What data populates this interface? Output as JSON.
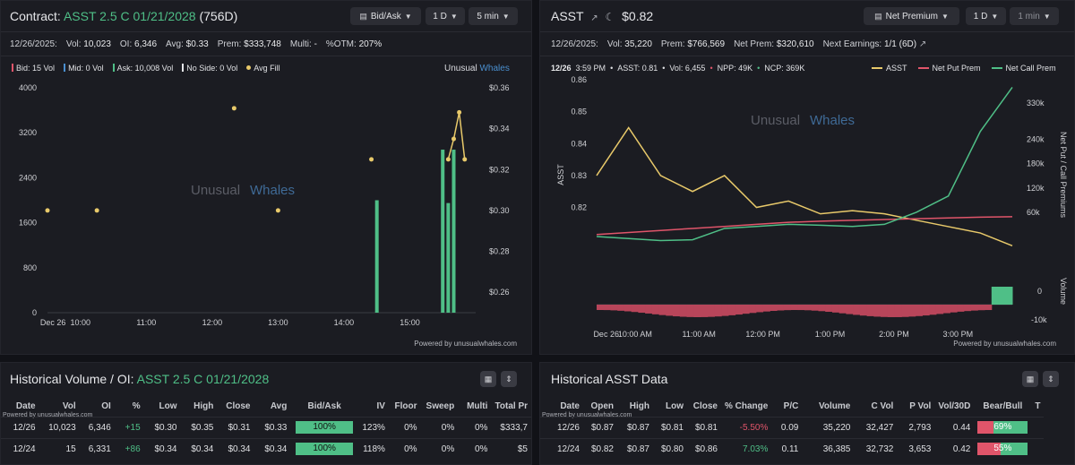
{
  "contract": {
    "label": "Contract:",
    "symbol": "ASST 2.5 C 01/21/2028",
    "dte": "(756D)",
    "controls": {
      "mode": "Bid/Ask",
      "range": "1 D",
      "interval": "5 min"
    },
    "stats": {
      "date": "12/26/2025:",
      "vol_label": "Vol:",
      "vol": "10,023",
      "oi_label": "OI:",
      "oi": "6,346",
      "avg_label": "Avg:",
      "avg": "$0.33",
      "prem_label": "Prem:",
      "prem": "$333,748",
      "multi_label": "Multi:",
      "multi": "-",
      "otm_label": "%OTM:",
      "otm": "207%"
    },
    "legend": {
      "bid_label": "Bid:",
      "bid": "15 Vol",
      "mid_label": "Mid:",
      "mid": "0 Vol",
      "ask_label": "Ask:",
      "ask": "10,008 Vol",
      "noside_label": "No Side:",
      "noside": "0 Vol",
      "avgfill": "Avg Fill"
    },
    "brand": "Unusual",
    "brand2": "Whales",
    "powered": "Powered by unusualwhales.com"
  },
  "asst": {
    "ticker": "ASST",
    "price": "$0.82",
    "controls": {
      "mode": "Net Premium",
      "range": "1 D",
      "interval": "1 min"
    },
    "stats": {
      "date": "12/26/2025:",
      "vol_label": "Vol:",
      "vol": "35,220",
      "prem_label": "Prem:",
      "prem": "$766,569",
      "netprem_label": "Net Prem:",
      "netprem": "$320,610",
      "earn_label": "Next Earnings:",
      "earn": "1/1 (6D)"
    },
    "hover": {
      "time": "12/26",
      "time2": "3:59 PM",
      "asst": "ASST: 0.81",
      "vol": "Vol: 6,455",
      "npp": "NPP: 49K",
      "ncp": "NCP: 369K"
    },
    "legend": {
      "asst": "ASST",
      "npp": "Net Put Prem",
      "ncp": "Net Call Prem"
    },
    "brand": "Unusual",
    "brand2": "Whales",
    "powered": "Powered by unusualwhales.com",
    "left_axis_title": "ASST",
    "right_axis_title": "Net Put / Call Premiums",
    "volume_axis_title": "Volume"
  },
  "histvol": {
    "title_prefix": "Historical Volume / OI:",
    "title_symbol": "ASST 2.5 C 01/21/2028",
    "powered": "Powered by unusualwhales.com",
    "columns": [
      "Date",
      "Vol",
      "OI",
      "%",
      "Low",
      "High",
      "Close",
      "Avg",
      "Bid/Ask",
      "IV",
      "Floor",
      "Sweep",
      "Multi",
      "Total Pr"
    ],
    "rows": [
      {
        "date": "12/26",
        "vol": "10,023",
        "oi": "6,346",
        "pct": "+15",
        "low": "$0.30",
        "high": "$0.35",
        "close": "$0.31",
        "avg": "$0.33",
        "bidask": "100%",
        "bidask_value": 100,
        "iv": "123%",
        "floor": "0%",
        "sweep": "0%",
        "multi": "0%",
        "total": "$333,7"
      },
      {
        "date": "12/24",
        "vol": "15",
        "oi": "6,331",
        "pct": "+86",
        "low": "$0.34",
        "high": "$0.34",
        "close": "$0.34",
        "avg": "$0.34",
        "bidask": "100%",
        "bidask_value": 100,
        "iv": "118%",
        "floor": "0%",
        "sweep": "0%",
        "multi": "0%",
        "total": "$5"
      }
    ]
  },
  "histdata": {
    "title": "Historical ASST Data",
    "powered": "Powered by unusualwhales.com",
    "columns": [
      "Date",
      "Open",
      "High",
      "Low",
      "Close",
      "% Change",
      "P/C",
      "Volume",
      "C Vol",
      "P Vol",
      "Vol/30D",
      "Bear/Bull",
      "T"
    ],
    "rows": [
      {
        "date": "12/26",
        "open": "$0.87",
        "high": "$0.87",
        "low": "$0.81",
        "close": "$0.81",
        "chg": "-5.50%",
        "pc": "0.09",
        "volume": "35,220",
        "cvol": "32,427",
        "pvol": "2,793",
        "v30": "0.44",
        "bb": "69%",
        "bull_pct": 69
      },
      {
        "date": "12/24",
        "open": "$0.82",
        "high": "$0.87",
        "low": "$0.80",
        "close": "$0.86",
        "chg": "7.03%",
        "pc": "0.11",
        "volume": "36,385",
        "cvol": "32,732",
        "pvol": "3,653",
        "v30": "0.42",
        "bb": "55%",
        "bull_pct": 55
      }
    ]
  },
  "chart_data": [
    {
      "type": "bar",
      "title": "",
      "x_ticks": [
        "Dec 26",
        "10:00",
        "11:00",
        "12:00",
        "13:00",
        "14:00",
        "15:00"
      ],
      "y_left_ticks": [
        "0",
        "800",
        "1600",
        "2400",
        "3200",
        "4000"
      ],
      "y_right_ticks": [
        "$0.26",
        "$0.28",
        "$0.30",
        "$0.32",
        "$0.34",
        "$0.36"
      ],
      "ylim_left": [
        0,
        4000
      ],
      "ylim_right": [
        0.25,
        0.36
      ],
      "series": [
        {
          "name": "Ask",
          "color": "#4fbf87",
          "x": [
            "14:30",
            "15:30",
            "15:35",
            "15:40"
          ],
          "values": [
            2000,
            2900,
            1950,
            2900
          ]
        },
        {
          "name": "Avg Fill",
          "color": "#e8c96a",
          "x": [
            "09:30",
            "10:15",
            "12:20",
            "13:00",
            "14:25",
            "15:35",
            "15:40",
            "15:45",
            "15:50"
          ],
          "values": [
            0.3,
            0.3,
            0.35,
            0.3,
            0.325,
            0.325,
            0.335,
            0.348,
            0.325
          ]
        }
      ]
    },
    {
      "type": "line",
      "x_ticks": [
        "Dec 26",
        "10:00 AM",
        "11:00 AM",
        "12:00 PM",
        "1:00 PM",
        "2:00 PM",
        "3:00 PM"
      ],
      "y_left_ticks": [
        "0.82",
        "0.83",
        "0.84",
        "0.85",
        "0.86"
      ],
      "y_right_ticks": [
        "60k",
        "120k",
        "180k",
        "240k",
        "330k"
      ],
      "volume_ticks": [
        "0",
        "-10k"
      ],
      "ylim_left": [
        0.805,
        0.86
      ],
      "series": [
        {
          "name": "ASST",
          "color": "#e8c96a",
          "values": [
            0.83,
            0.845,
            0.83,
            0.825,
            0.83,
            0.82,
            0.822,
            0.818,
            0.819,
            0.818,
            0.816,
            0.814,
            0.812,
            0.808
          ]
        },
        {
          "name": "Net Put Prem",
          "color": "#e0556a",
          "values": [
            5000,
            10000,
            15000,
            20000,
            25000,
            30000,
            35000,
            38000,
            40000,
            42000,
            44000,
            46000,
            48000,
            49000
          ]
        },
        {
          "name": "Net Call Prem",
          "color": "#4fbf87",
          "values": [
            0,
            -5000,
            -10000,
            -8000,
            20000,
            25000,
            30000,
            28000,
            25000,
            30000,
            60000,
            100000,
            260000,
            369000
          ]
        }
      ]
    }
  ]
}
